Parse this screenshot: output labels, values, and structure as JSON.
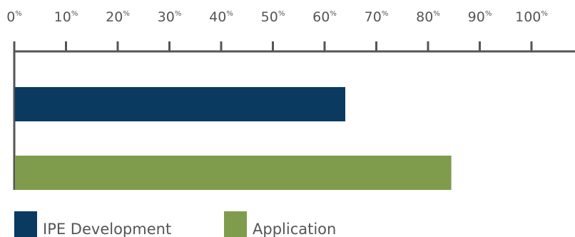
{
  "chart_data": {
    "type": "bar",
    "orientation": "horizontal",
    "title": "",
    "xlabel": "",
    "ylabel": "",
    "xlim": [
      0,
      100
    ],
    "ticks": [
      {
        "value": 0,
        "label": "0",
        "unit": "%"
      },
      {
        "value": 10,
        "label": "10",
        "unit": "%"
      },
      {
        "value": 20,
        "label": "20",
        "unit": "%"
      },
      {
        "value": 30,
        "label": "30",
        "unit": "%"
      },
      {
        "value": 40,
        "label": "40",
        "unit": "%"
      },
      {
        "value": 50,
        "label": "50",
        "unit": "%"
      },
      {
        "value": 60,
        "label": "60",
        "unit": "%"
      },
      {
        "value": 70,
        "label": "70",
        "unit": "%"
      },
      {
        "value": 80,
        "label": "80",
        "unit": "%"
      },
      {
        "value": 90,
        "label": "90",
        "unit": "%"
      },
      {
        "value": 100,
        "label": "100",
        "unit": "%"
      }
    ],
    "grid": false,
    "axis_position": "top",
    "legend_position": "bottom-left",
    "series": [
      {
        "name": "IPE Development",
        "value": 64,
        "color": "#0a3a60"
      },
      {
        "name": "Application",
        "value": 84.5,
        "color": "#7f9c4c"
      }
    ],
    "axis_color": "#555555"
  }
}
